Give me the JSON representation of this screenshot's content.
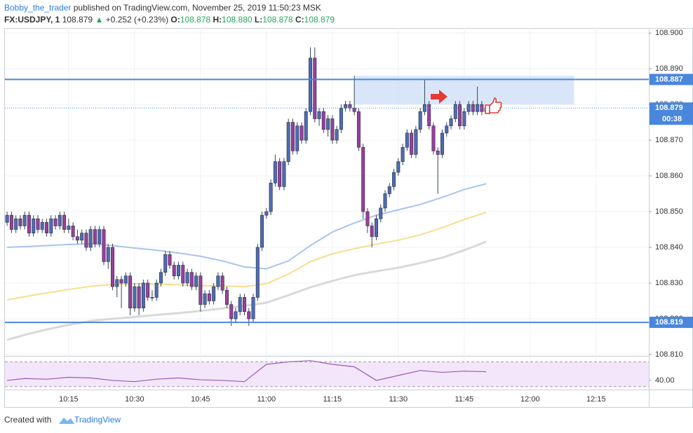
{
  "header": {
    "author": "Bobby_the_trader",
    "published": "published on TradingView.com, November 25, 2019 11:50:23 MSK",
    "symbol": "FX:USDJPY, 1",
    "last": "108.879",
    "arrow": "▲",
    "change": "+0.252 (+0.23%)",
    "ohlc": [
      {
        "label": "O:",
        "value": "108.878"
      },
      {
        "label": "H:",
        "value": "108.880"
      },
      {
        "label": "L:",
        "value": "108.878"
      },
      {
        "label": "C:",
        "value": "108.879"
      }
    ]
  },
  "footer": {
    "created": "Created with",
    "brand": "TradingView"
  },
  "chart_data": {
    "type": "candlestick",
    "up_color": "#4f6bb5",
    "down_color": "#9a3ea0",
    "wick_color": "#37474f",
    "grid": true,
    "xlim": [
      600.5,
      747
    ],
    "ylim": [
      108.8096,
      108.9014
    ],
    "xticks": [
      {
        "value": 615,
        "label": "10:15"
      },
      {
        "value": 630,
        "label": "10:30"
      },
      {
        "value": 645,
        "label": "10:45"
      },
      {
        "value": 660,
        "label": "11:00"
      },
      {
        "value": 675,
        "label": "11:15"
      },
      {
        "value": 690,
        "label": "11:30"
      },
      {
        "value": 705,
        "label": "11:45"
      },
      {
        "value": 720,
        "label": "12:00"
      },
      {
        "value": 735,
        "label": "12:15"
      }
    ],
    "yticks": [
      {
        "value": 108.81,
        "label": "108.810"
      },
      {
        "value": 108.82,
        "label": "108.820"
      },
      {
        "value": 108.83,
        "label": "108.830"
      },
      {
        "value": 108.84,
        "label": "108.840"
      },
      {
        "value": 108.85,
        "label": "108.850"
      },
      {
        "value": 108.86,
        "label": "108.860"
      },
      {
        "value": 108.87,
        "label": "108.870"
      },
      {
        "value": 108.88,
        "label": "108.880"
      },
      {
        "value": 108.89,
        "label": "108.890"
      },
      {
        "value": 108.9,
        "label": "108.900"
      }
    ],
    "x": [
      601,
      602,
      603,
      604,
      605,
      606,
      607,
      608,
      609,
      610,
      611,
      612,
      613,
      614,
      615,
      616,
      617,
      618,
      619,
      620,
      621,
      622,
      623,
      624,
      625,
      626,
      627,
      628,
      629,
      630,
      631,
      632,
      633,
      634,
      635,
      636,
      637,
      638,
      639,
      640,
      641,
      642,
      643,
      644,
      645,
      646,
      647,
      648,
      649,
      650,
      651,
      652,
      653,
      654,
      655,
      656,
      657,
      658,
      659,
      660,
      661,
      662,
      663,
      664,
      665,
      666,
      667,
      668,
      669,
      670,
      671,
      672,
      673,
      674,
      675,
      676,
      677,
      678,
      679,
      680,
      681,
      682,
      683,
      684,
      685,
      686,
      687,
      688,
      689,
      690,
      691,
      692,
      693,
      694,
      695,
      696,
      697,
      698,
      699,
      700,
      701,
      702,
      703,
      704,
      705,
      706,
      707,
      708,
      709,
      710
    ],
    "ohlc": [
      [
        108.847,
        108.85,
        108.846,
        108.849
      ],
      [
        108.849,
        108.85,
        108.844,
        108.845
      ],
      [
        108.845,
        108.849,
        108.844,
        108.848
      ],
      [
        108.848,
        108.849,
        108.845,
        108.846
      ],
      [
        108.846,
        108.85,
        108.845,
        108.849
      ],
      [
        108.849,
        108.85,
        108.843,
        108.844
      ],
      [
        108.844,
        108.849,
        108.843,
        108.848
      ],
      [
        108.848,
        108.849,
        108.844,
        108.845
      ],
      [
        108.845,
        108.848,
        108.844,
        108.847
      ],
      [
        108.847,
        108.848,
        108.843,
        108.844
      ],
      [
        108.844,
        108.849,
        108.843,
        108.848
      ],
      [
        108.848,
        108.849,
        108.845,
        108.846
      ],
      [
        108.846,
        108.85,
        108.845,
        108.849
      ],
      [
        108.849,
        108.85,
        108.844,
        108.845
      ],
      [
        108.845,
        108.848,
        108.844,
        108.846
      ],
      [
        108.846,
        108.847,
        108.842,
        108.843
      ],
      [
        108.843,
        108.845,
        108.841,
        108.842
      ],
      [
        108.842,
        108.845,
        108.841,
        108.844
      ],
      [
        108.844,
        108.845,
        108.839,
        108.84
      ],
      [
        108.84,
        108.846,
        108.839,
        108.845
      ],
      [
        108.845,
        108.846,
        108.84,
        108.841
      ],
      [
        108.841,
        108.846,
        108.84,
        108.845
      ],
      [
        108.845,
        108.846,
        108.835,
        108.836
      ],
      [
        108.836,
        108.841,
        108.834,
        108.84
      ],
      [
        108.84,
        108.841,
        108.828,
        108.829
      ],
      [
        108.829,
        108.832,
        108.826,
        108.831
      ],
      [
        108.831,
        108.832,
        108.823,
        108.83
      ],
      [
        108.83,
        108.833,
        108.829,
        108.832
      ],
      [
        108.832,
        108.833,
        108.821,
        108.823
      ],
      [
        108.823,
        108.83,
        108.822,
        108.829
      ],
      [
        108.829,
        108.83,
        108.821,
        108.823
      ],
      [
        108.823,
        108.831,
        108.822,
        108.83
      ],
      [
        108.83,
        108.831,
        108.825,
        108.826
      ],
      [
        108.826,
        108.828,
        108.825,
        108.826
      ],
      [
        108.826,
        108.831,
        108.825,
        108.83
      ],
      [
        108.83,
        108.834,
        108.829,
        108.833
      ],
      [
        108.833,
        108.839,
        108.832,
        108.838
      ],
      [
        108.838,
        108.839,
        108.834,
        108.835
      ],
      [
        108.835,
        108.836,
        108.831,
        108.832
      ],
      [
        108.832,
        108.836,
        108.831,
        108.835
      ],
      [
        108.835,
        108.836,
        108.829,
        108.83
      ],
      [
        108.83,
        108.834,
        108.829,
        108.833
      ],
      [
        108.833,
        108.834,
        108.828,
        108.829
      ],
      [
        108.829,
        108.833,
        108.828,
        108.832
      ],
      [
        108.832,
        108.833,
        108.822,
        108.824
      ],
      [
        108.824,
        108.828,
        108.823,
        108.827
      ],
      [
        108.827,
        108.828,
        108.824,
        108.825
      ],
      [
        108.825,
        108.83,
        108.824,
        108.829
      ],
      [
        108.829,
        108.833,
        108.828,
        108.832
      ],
      [
        108.832,
        108.833,
        108.827,
        108.828
      ],
      [
        108.828,
        108.829,
        108.823,
        108.824
      ],
      [
        108.824,
        108.825,
        108.818,
        108.82
      ],
      [
        108.82,
        108.823,
        108.819,
        108.822
      ],
      [
        108.822,
        108.827,
        108.821,
        108.826
      ],
      [
        108.826,
        108.827,
        108.821,
        108.822
      ],
      [
        108.822,
        108.823,
        108.818,
        108.82
      ],
      [
        108.82,
        108.827,
        108.819,
        108.826
      ],
      [
        108.826,
        108.841,
        108.825,
        108.84
      ],
      [
        108.84,
        108.85,
        108.839,
        108.849
      ],
      [
        108.849,
        108.851,
        108.848,
        108.85
      ],
      [
        108.85,
        108.859,
        108.849,
        108.858
      ],
      [
        108.858,
        108.866,
        108.857,
        108.864
      ],
      [
        108.864,
        108.865,
        108.856,
        108.857
      ],
      [
        108.857,
        108.865,
        108.856,
        108.864
      ],
      [
        108.864,
        108.876,
        108.863,
        108.875
      ],
      [
        108.875,
        108.876,
        108.866,
        108.867
      ],
      [
        108.867,
        108.875,
        108.866,
        108.874
      ],
      [
        108.874,
        108.875,
        108.869,
        108.87
      ],
      [
        108.87,
        108.879,
        108.869,
        108.878
      ],
      [
        108.878,
        108.896,
        108.877,
        108.893
      ],
      [
        108.893,
        108.896,
        108.875,
        108.876
      ],
      [
        108.876,
        108.879,
        108.874,
        108.878
      ],
      [
        108.878,
        108.879,
        108.872,
        108.873
      ],
      [
        108.873,
        108.877,
        108.871,
        108.876
      ],
      [
        108.876,
        108.877,
        108.869,
        108.87
      ],
      [
        108.87,
        108.874,
        108.869,
        108.873
      ],
      [
        108.873,
        108.88,
        108.872,
        108.879
      ],
      [
        108.879,
        108.881,
        108.878,
        108.88
      ],
      [
        108.88,
        108.881,
        108.878,
        108.879
      ],
      [
        108.879,
        108.888,
        108.877,
        108.878
      ],
      [
        108.878,
        108.879,
        108.867,
        108.868
      ],
      [
        108.868,
        108.869,
        108.848,
        108.85
      ],
      [
        108.85,
        108.851,
        108.844,
        108.846
      ],
      [
        108.846,
        108.847,
        108.84,
        108.843
      ],
      [
        108.843,
        108.849,
        108.842,
        108.848
      ],
      [
        108.848,
        108.852,
        108.847,
        108.851
      ],
      [
        108.851,
        108.856,
        108.85,
        108.855
      ],
      [
        108.855,
        108.858,
        108.854,
        108.857
      ],
      [
        108.857,
        108.862,
        108.856,
        108.861
      ],
      [
        108.861,
        108.865,
        108.86,
        108.864
      ],
      [
        108.864,
        108.869,
        108.863,
        108.868
      ],
      [
        108.868,
        108.873,
        108.867,
        108.872
      ],
      [
        108.872,
        108.873,
        108.865,
        108.866
      ],
      [
        108.866,
        108.874,
        108.865,
        108.873
      ],
      [
        108.873,
        108.879,
        108.872,
        108.878
      ],
      [
        108.878,
        108.887,
        108.877,
        108.88
      ],
      [
        108.88,
        108.881,
        108.873,
        108.874
      ],
      [
        108.874,
        108.875,
        108.866,
        108.867
      ],
      [
        108.867,
        108.868,
        108.855,
        108.866
      ],
      [
        108.866,
        108.873,
        108.865,
        108.872
      ],
      [
        108.872,
        108.875,
        108.871,
        108.874
      ],
      [
        108.874,
        108.877,
        108.873,
        108.876
      ],
      [
        108.876,
        108.881,
        108.875,
        108.88
      ],
      [
        108.88,
        108.881,
        108.873,
        108.874
      ],
      [
        108.874,
        108.879,
        108.873,
        108.878
      ],
      [
        108.878,
        108.881,
        108.877,
        108.88
      ],
      [
        108.88,
        108.881,
        108.877,
        108.878
      ],
      [
        108.878,
        108.885,
        108.877,
        108.88
      ],
      [
        108.88,
        108.881,
        108.877,
        108.878
      ],
      [
        108.878,
        108.88,
        108.878,
        108.879
      ]
    ],
    "overlays": [
      {
        "color": "#a9c4ec",
        "width": 2,
        "x": [
          601,
          605,
          610,
          615,
          620,
          625,
          630,
          635,
          640,
          645,
          650,
          655,
          660,
          665,
          670,
          675,
          680,
          685,
          690,
          695,
          700,
          705,
          710
        ],
        "values": [
          108.84,
          108.8402,
          108.8405,
          108.8408,
          108.841,
          108.8405,
          108.8398,
          108.8392,
          108.8384,
          108.8375,
          108.8362,
          108.8345,
          108.834,
          108.8362,
          108.8405,
          108.8443,
          108.8468,
          108.849,
          108.8505,
          108.852,
          108.854,
          108.8562,
          108.8578
        ]
      },
      {
        "color": "#f6dd8e",
        "width": 2,
        "x": [
          601,
          605,
          610,
          615,
          620,
          625,
          630,
          635,
          640,
          645,
          650,
          655,
          660,
          665,
          670,
          675,
          680,
          685,
          690,
          695,
          700,
          705,
          710
        ],
        "values": [
          108.8253,
          108.8262,
          108.8272,
          108.8282,
          108.8291,
          108.8296,
          108.8298,
          108.8297,
          108.8295,
          108.8293,
          108.8292,
          108.829,
          108.8298,
          108.8325,
          108.836,
          108.8382,
          108.8396,
          108.8409,
          108.842,
          108.8435,
          108.8455,
          108.8478,
          108.8498
        ]
      },
      {
        "color": "#d9d9d9",
        "width": 3,
        "x": [
          601,
          605,
          610,
          615,
          620,
          625,
          630,
          635,
          640,
          645,
          650,
          655,
          660,
          665,
          670,
          675,
          680,
          685,
          690,
          695,
          700,
          705,
          710
        ],
        "values": [
          108.8141,
          108.8155,
          108.817,
          108.8183,
          108.8194,
          108.82,
          108.8205,
          108.8211,
          108.8216,
          108.8222,
          108.8229,
          108.8236,
          108.8245,
          108.8266,
          108.8288,
          108.8306,
          108.8322,
          108.8333,
          108.8343,
          108.8356,
          108.8371,
          108.8392,
          108.8416
        ]
      }
    ],
    "zone": {
      "x": [
        680,
        730
      ],
      "y": [
        108.88,
        108.888
      ],
      "color": "#cfe0f8"
    },
    "levels": [
      {
        "value": 108.887,
        "label": "108.887"
      },
      {
        "value": 108.819,
        "label": "108.819"
      }
    ],
    "level_color": "#4a86dc",
    "last_price": {
      "value": 108.879,
      "label": "108.879",
      "countdown": "00:38"
    },
    "rsi": {
      "type": "line",
      "color": "#9b59b6",
      "fill": "#f3e6fa",
      "ylim": [
        25.2,
        77.3
      ],
      "yticks": [
        {
          "value": 40,
          "label": "40.00"
        }
      ],
      "bands": [
        30,
        70
      ],
      "x": [
        601,
        605,
        610,
        615,
        620,
        625,
        630,
        635,
        640,
        645,
        650,
        655,
        660,
        665,
        670,
        675,
        680,
        685,
        690,
        695,
        700,
        705,
        710
      ],
      "values": [
        40,
        43,
        42,
        45,
        44,
        40,
        38,
        42,
        44,
        41,
        40,
        38,
        66,
        70,
        72,
        66,
        62,
        40,
        48,
        56,
        53,
        55,
        54
      ]
    }
  }
}
